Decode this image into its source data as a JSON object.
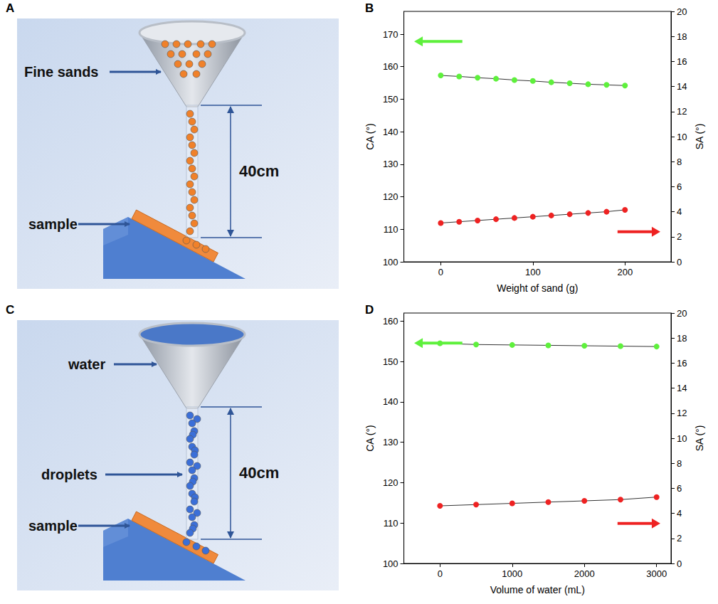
{
  "diagrams": [
    {
      "letter": "A",
      "source_label": "Fine sands",
      "height_label": "40cm",
      "sample_label": "sample",
      "particle_color": "#f0812a",
      "source": "sand"
    },
    {
      "letter": "C",
      "source_label": "water",
      "stream_label": "droplets",
      "height_label": "40cm",
      "sample_label": "sample",
      "particle_color": "#3b6fd8",
      "source": "water"
    }
  ],
  "chart_data": [
    {
      "letter": "B",
      "type": "line",
      "xlabel": "Weight of sand (g)",
      "ylabel": "CA (°)",
      "y2label": "SA (°)",
      "x": [
        0,
        20,
        40,
        60,
        80,
        100,
        120,
        140,
        160,
        180,
        200
      ],
      "series": [
        {
          "color": "#5ef03c",
          "marker": "circle",
          "line_style": "solid",
          "values": [
            157.3,
            157.0,
            156.6,
            156.3,
            155.9,
            155.6,
            155.2,
            154.9,
            154.6,
            154.4,
            154.2
          ]
        },
        {
          "color": "#ee2222",
          "marker": "circle",
          "line_style": "solid",
          "axis": "y2",
          "values": [
            3.1,
            3.2,
            3.3,
            3.4,
            3.5,
            3.6,
            3.7,
            3.8,
            3.9,
            4.0,
            4.15
          ]
        }
      ],
      "xlim": [
        -40,
        250
      ],
      "xticks": [
        0,
        100,
        200
      ],
      "ylim": [
        100,
        177
      ],
      "yticks": [
        100,
        110,
        120,
        130,
        140,
        150,
        160,
        170
      ],
      "y2lim": [
        0,
        20
      ],
      "y2ticks": [
        0,
        2,
        4,
        6,
        8,
        10,
        12,
        14,
        16,
        18,
        20
      ],
      "grid": false
    },
    {
      "letter": "D",
      "type": "line",
      "xlabel": "Volume of water (mL)",
      "ylabel": "CA (°)",
      "y2label": "SA (°)",
      "x": [
        0,
        500,
        1000,
        1500,
        2000,
        2500,
        3000
      ],
      "series": [
        {
          "color": "#5ef03c",
          "marker": "circle",
          "line_style": "solid",
          "values": [
            154.5,
            154.2,
            154.1,
            154.0,
            153.9,
            153.8,
            153.7
          ]
        },
        {
          "color": "#ee2222",
          "marker": "circle",
          "line_style": "solid",
          "axis": "y2",
          "values": [
            4.6,
            4.7,
            4.8,
            4.9,
            5.0,
            5.1,
            5.3
          ]
        }
      ],
      "xlim": [
        -500,
        3200
      ],
      "xticks": [
        0,
        1000,
        2000,
        3000
      ],
      "ylim": [
        100,
        162
      ],
      "yticks": [
        100,
        110,
        120,
        130,
        140,
        150,
        160
      ],
      "y2lim": [
        0,
        20
      ],
      "y2ticks": [
        0,
        2,
        4,
        6,
        8,
        10,
        12,
        14,
        16,
        18,
        20
      ],
      "grid": false
    }
  ]
}
